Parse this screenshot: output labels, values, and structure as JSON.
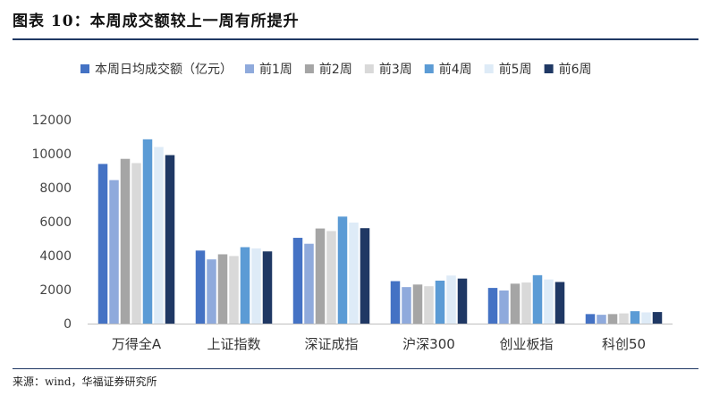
{
  "figure": {
    "title": "图表 10：本周成交额较上一周有所提升",
    "source": "来源：wind，华福证券研究所"
  },
  "chart_data": {
    "type": "bar",
    "title": "",
    "xlabel": "",
    "ylabel": "",
    "categories": [
      "万得全A",
      "上证指数",
      "深证成指",
      "沪深300",
      "创业板指",
      "科创50"
    ],
    "ylim": [
      0,
      12000
    ],
    "yticks": [
      0,
      2000,
      4000,
      6000,
      8000,
      10000,
      12000
    ],
    "grid": false,
    "legend_position": "top",
    "series": [
      {
        "name": "本周日均成交额（亿元）",
        "color": "#4472c4",
        "values": [
          9400,
          4300,
          5050,
          2500,
          2100,
          560
        ]
      },
      {
        "name": "前1周",
        "color": "#8faadc",
        "values": [
          8450,
          3780,
          4700,
          2150,
          1950,
          520
        ]
      },
      {
        "name": "前2周",
        "color": "#a5a5a5",
        "values": [
          9700,
          4080,
          5600,
          2300,
          2350,
          560
        ]
      },
      {
        "name": "前3周",
        "color": "#d9d9d9",
        "values": [
          9450,
          3980,
          5450,
          2200,
          2420,
          600
        ]
      },
      {
        "name": "前4周",
        "color": "#5b9bd5",
        "values": [
          10850,
          4500,
          6300,
          2530,
          2850,
          730
        ]
      },
      {
        "name": "前5周",
        "color": "#deebf7",
        "values": [
          10400,
          4430,
          5950,
          2830,
          2600,
          660
        ]
      },
      {
        "name": "前6周",
        "color": "#1f3864",
        "values": [
          9920,
          4250,
          5620,
          2650,
          2450,
          680
        ]
      }
    ]
  }
}
